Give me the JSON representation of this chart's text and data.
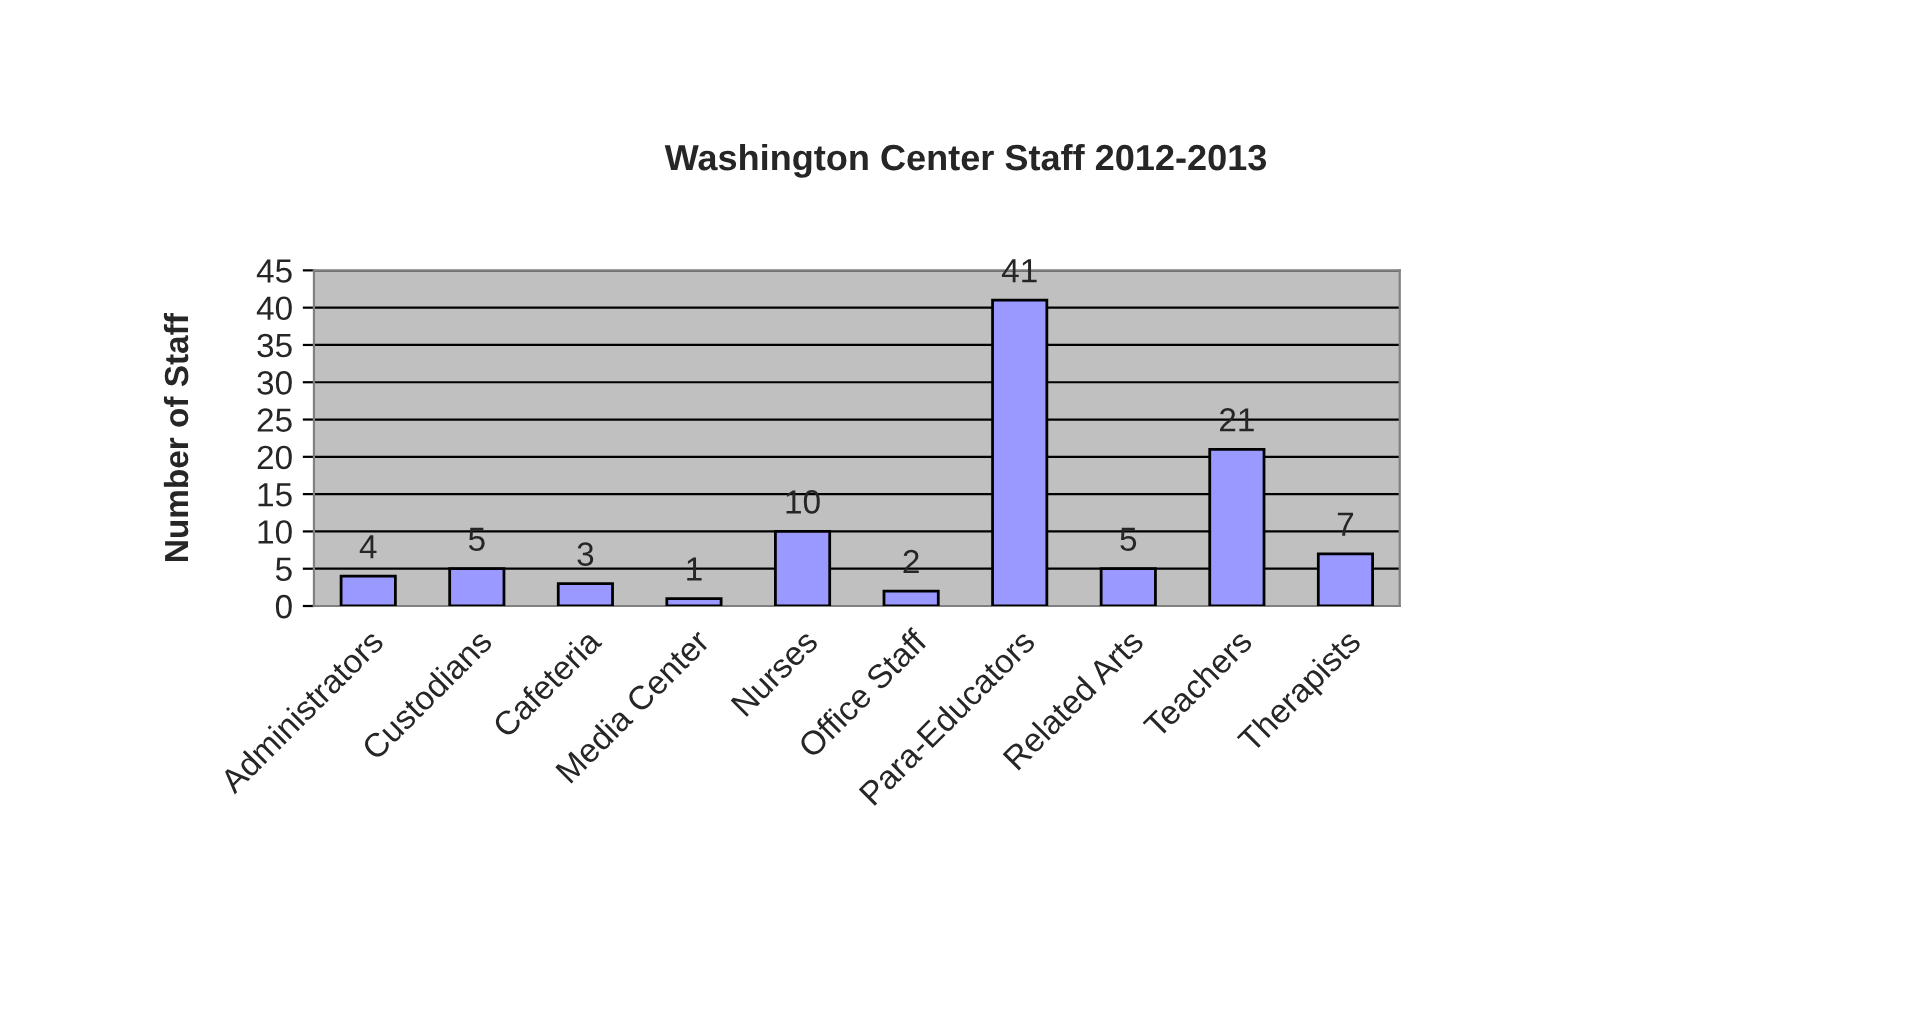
{
  "chart_data": {
    "type": "bar",
    "title": "Washington Center Staff 2012-2013",
    "ylabel": "Number of Staff",
    "categories": [
      "Administrators",
      "Custodians",
      "Cafeteria",
      "Media Center",
      "Nurses",
      "Office Staff",
      "Para-Educators",
      "Related Arts",
      "Teachers",
      "Therapists"
    ],
    "values": [
      4,
      5,
      3,
      1,
      10,
      2,
      41,
      5,
      21,
      7
    ],
    "color": "#9999ff",
    "ylim": [
      0,
      45
    ],
    "yticks": [
      0,
      5,
      10,
      15,
      20,
      25,
      30,
      35,
      40,
      45
    ],
    "grid": "y",
    "data_labels": true,
    "legend": false
  }
}
